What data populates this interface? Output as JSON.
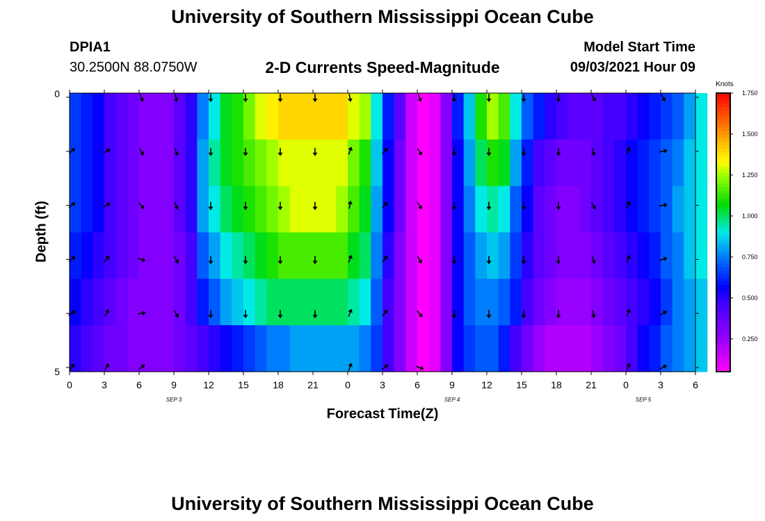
{
  "header": {
    "title": "University of Southern Mississippi Ocean Cube",
    "station_id": "DPIA1",
    "coordinates": "30.2500N  88.0750W",
    "subtitle": "2-D Currents Speed-Magnitude",
    "model_start_label": "Model Start Time",
    "model_start_value": "09/03/2021 Hour 09"
  },
  "footer": {
    "title": "University of Southern Mississippi Ocean Cube"
  },
  "colors": {
    "text": "#000000",
    "arrow": "#000000",
    "background": "#ffffff"
  },
  "chart_data": {
    "type": "heatmap",
    "title": "2-D Currents Speed-Magnitude",
    "xlabel": "Forecast Time(Z)",
    "ylabel": "Depth (ft)",
    "x_tick_labels": [
      "0",
      "3",
      "6",
      "9",
      "12",
      "15",
      "18",
      "21",
      "0",
      "3",
      "6",
      "9",
      "12",
      "15",
      "18",
      "21",
      "0",
      "3",
      "6"
    ],
    "date_labels": [
      {
        "text": "SEP 3",
        "at_tick": 3
      },
      {
        "text": "SEP 4",
        "at_tick": 11
      },
      {
        "text": "SEP 5",
        "at_tick": 16.5
      }
    ],
    "y_tick_labels": [
      "0",
      "5"
    ],
    "ylim": [
      0,
      5
    ],
    "time_hours": [
      0,
      1,
      2,
      3,
      4,
      5,
      6,
      7,
      8,
      9,
      10,
      11,
      12,
      13,
      14,
      15,
      16,
      17,
      18,
      19,
      20,
      21,
      22,
      23,
      24,
      25,
      26,
      27,
      28,
      29,
      30,
      31,
      32,
      33,
      34,
      35,
      36,
      37,
      38,
      39,
      40,
      41,
      42,
      43,
      44,
      45,
      46,
      47,
      48,
      49,
      50,
      51,
      52,
      53,
      54
    ],
    "depth_rows": [
      0,
      1,
      2,
      3,
      4,
      5
    ],
    "speed_rows": [
      [
        0.65,
        0.6,
        0.55,
        0.45,
        0.4,
        0.35,
        0.3,
        0.3,
        0.3,
        0.4,
        0.5,
        0.75,
        0.9,
        1.05,
        1.1,
        1.2,
        1.3,
        1.35,
        1.4,
        1.4,
        1.4,
        1.4,
        1.4,
        1.4,
        1.3,
        1.25,
        0.9,
        0.6,
        0.4,
        0.15,
        0.05,
        0.1,
        0.3,
        0.6,
        0.85,
        1.1,
        1.25,
        1.15,
        0.9,
        0.7,
        0.6,
        0.5,
        0.45,
        0.4,
        0.4,
        0.4,
        0.45,
        0.45,
        0.5,
        0.55,
        0.6,
        0.65,
        0.7,
        0.8,
        0.9
      ],
      [
        0.65,
        0.6,
        0.55,
        0.45,
        0.4,
        0.35,
        0.3,
        0.3,
        0.3,
        0.4,
        0.5,
        0.8,
        0.95,
        1.05,
        1.1,
        1.15,
        1.2,
        1.25,
        1.3,
        1.3,
        1.3,
        1.3,
        1.3,
        1.3,
        1.2,
        1.1,
        0.85,
        0.55,
        0.35,
        0.15,
        0.05,
        0.1,
        0.3,
        0.55,
        0.8,
        1.0,
        1.1,
        1.05,
        0.8,
        0.6,
        0.45,
        0.4,
        0.35,
        0.35,
        0.35,
        0.4,
        0.45,
        0.5,
        0.55,
        0.6,
        0.65,
        0.7,
        0.75,
        0.85,
        0.9
      ],
      [
        0.65,
        0.6,
        0.55,
        0.45,
        0.4,
        0.35,
        0.3,
        0.3,
        0.3,
        0.4,
        0.5,
        0.8,
        0.9,
        1.0,
        1.05,
        1.1,
        1.15,
        1.2,
        1.25,
        1.3,
        1.3,
        1.3,
        1.3,
        1.25,
        1.15,
        1.05,
        0.8,
        0.55,
        0.35,
        0.15,
        0.05,
        0.1,
        0.3,
        0.55,
        0.75,
        0.9,
        0.95,
        0.9,
        0.7,
        0.55,
        0.4,
        0.35,
        0.3,
        0.3,
        0.35,
        0.4,
        0.45,
        0.5,
        0.55,
        0.6,
        0.65,
        0.7,
        0.8,
        0.85,
        0.9
      ],
      [
        0.6,
        0.55,
        0.5,
        0.45,
        0.4,
        0.35,
        0.3,
        0.3,
        0.3,
        0.35,
        0.45,
        0.7,
        0.8,
        0.9,
        0.95,
        1.0,
        1.05,
        1.1,
        1.15,
        1.15,
        1.15,
        1.15,
        1.15,
        1.15,
        1.05,
        1.0,
        0.75,
        0.5,
        0.3,
        0.15,
        0.05,
        0.1,
        0.3,
        0.55,
        0.7,
        0.8,
        0.85,
        0.8,
        0.65,
        0.5,
        0.4,
        0.35,
        0.3,
        0.3,
        0.3,
        0.35,
        0.4,
        0.45,
        0.5,
        0.55,
        0.6,
        0.7,
        0.75,
        0.85,
        0.9
      ],
      [
        0.55,
        0.5,
        0.45,
        0.4,
        0.35,
        0.3,
        0.3,
        0.3,
        0.3,
        0.35,
        0.45,
        0.6,
        0.7,
        0.8,
        0.85,
        0.9,
        0.95,
        1.0,
        1.0,
        1.0,
        1.0,
        1.0,
        1.0,
        1.0,
        0.95,
        0.9,
        0.7,
        0.45,
        0.3,
        0.15,
        0.05,
        0.1,
        0.3,
        0.55,
        0.7,
        0.75,
        0.75,
        0.7,
        0.6,
        0.45,
        0.35,
        0.3,
        0.25,
        0.25,
        0.25,
        0.3,
        0.35,
        0.4,
        0.45,
        0.5,
        0.55,
        0.65,
        0.75,
        0.8,
        0.85
      ],
      [
        0.5,
        0.45,
        0.4,
        0.35,
        0.35,
        0.3,
        0.3,
        0.3,
        0.3,
        0.35,
        0.4,
        0.45,
        0.5,
        0.55,
        0.6,
        0.65,
        0.7,
        0.75,
        0.75,
        0.8,
        0.8,
        0.8,
        0.8,
        0.8,
        0.8,
        0.75,
        0.65,
        0.45,
        0.3,
        0.15,
        0.05,
        0.1,
        0.3,
        0.55,
        0.65,
        0.7,
        0.7,
        0.6,
        0.45,
        0.35,
        0.25,
        0.2,
        0.2,
        0.2,
        0.2,
        0.25,
        0.3,
        0.35,
        0.45,
        0.55,
        0.6,
        0.7,
        0.75,
        0.8,
        0.85
      ]
    ],
    "colorbar": {
      "label": "Knots",
      "ticks": [
        "1.750",
        "1.500",
        "1.250",
        "1.000",
        "0.750",
        "0.500",
        "0.250"
      ],
      "range": [
        0.05,
        1.75
      ]
    },
    "arrow_times": [
      0,
      3,
      6,
      9,
      12,
      15,
      18,
      21,
      24,
      27,
      30,
      33,
      36,
      39,
      42,
      45,
      48,
      51
    ],
    "arrow_depth_rows": [
      0,
      1,
      2,
      3,
      4,
      5
    ],
    "arrow_directions_deg": [
      [
        null,
        null,
        160,
        170,
        180,
        180,
        180,
        180,
        170,
        null,
        160,
        180,
        180,
        180,
        180,
        150,
        null,
        150
      ],
      [
        45,
        60,
        150,
        160,
        180,
        180,
        180,
        180,
        20,
        45,
        150,
        180,
        180,
        180,
        180,
        170,
        20,
        80
      ],
      [
        50,
        60,
        140,
        160,
        180,
        180,
        180,
        180,
        10,
        40,
        150,
        180,
        180,
        180,
        180,
        150,
        20,
        80
      ],
      [
        50,
        40,
        110,
        150,
        180,
        180,
        180,
        180,
        20,
        40,
        150,
        180,
        180,
        180,
        180,
        160,
        20,
        70
      ],
      [
        60,
        30,
        80,
        150,
        180,
        180,
        180,
        180,
        20,
        40,
        140,
        180,
        180,
        180,
        180,
        170,
        20,
        60
      ],
      [
        40,
        30,
        50,
        null,
        null,
        null,
        null,
        null,
        20,
        50,
        110,
        null,
        null,
        null,
        null,
        null,
        20,
        60
      ]
    ]
  }
}
